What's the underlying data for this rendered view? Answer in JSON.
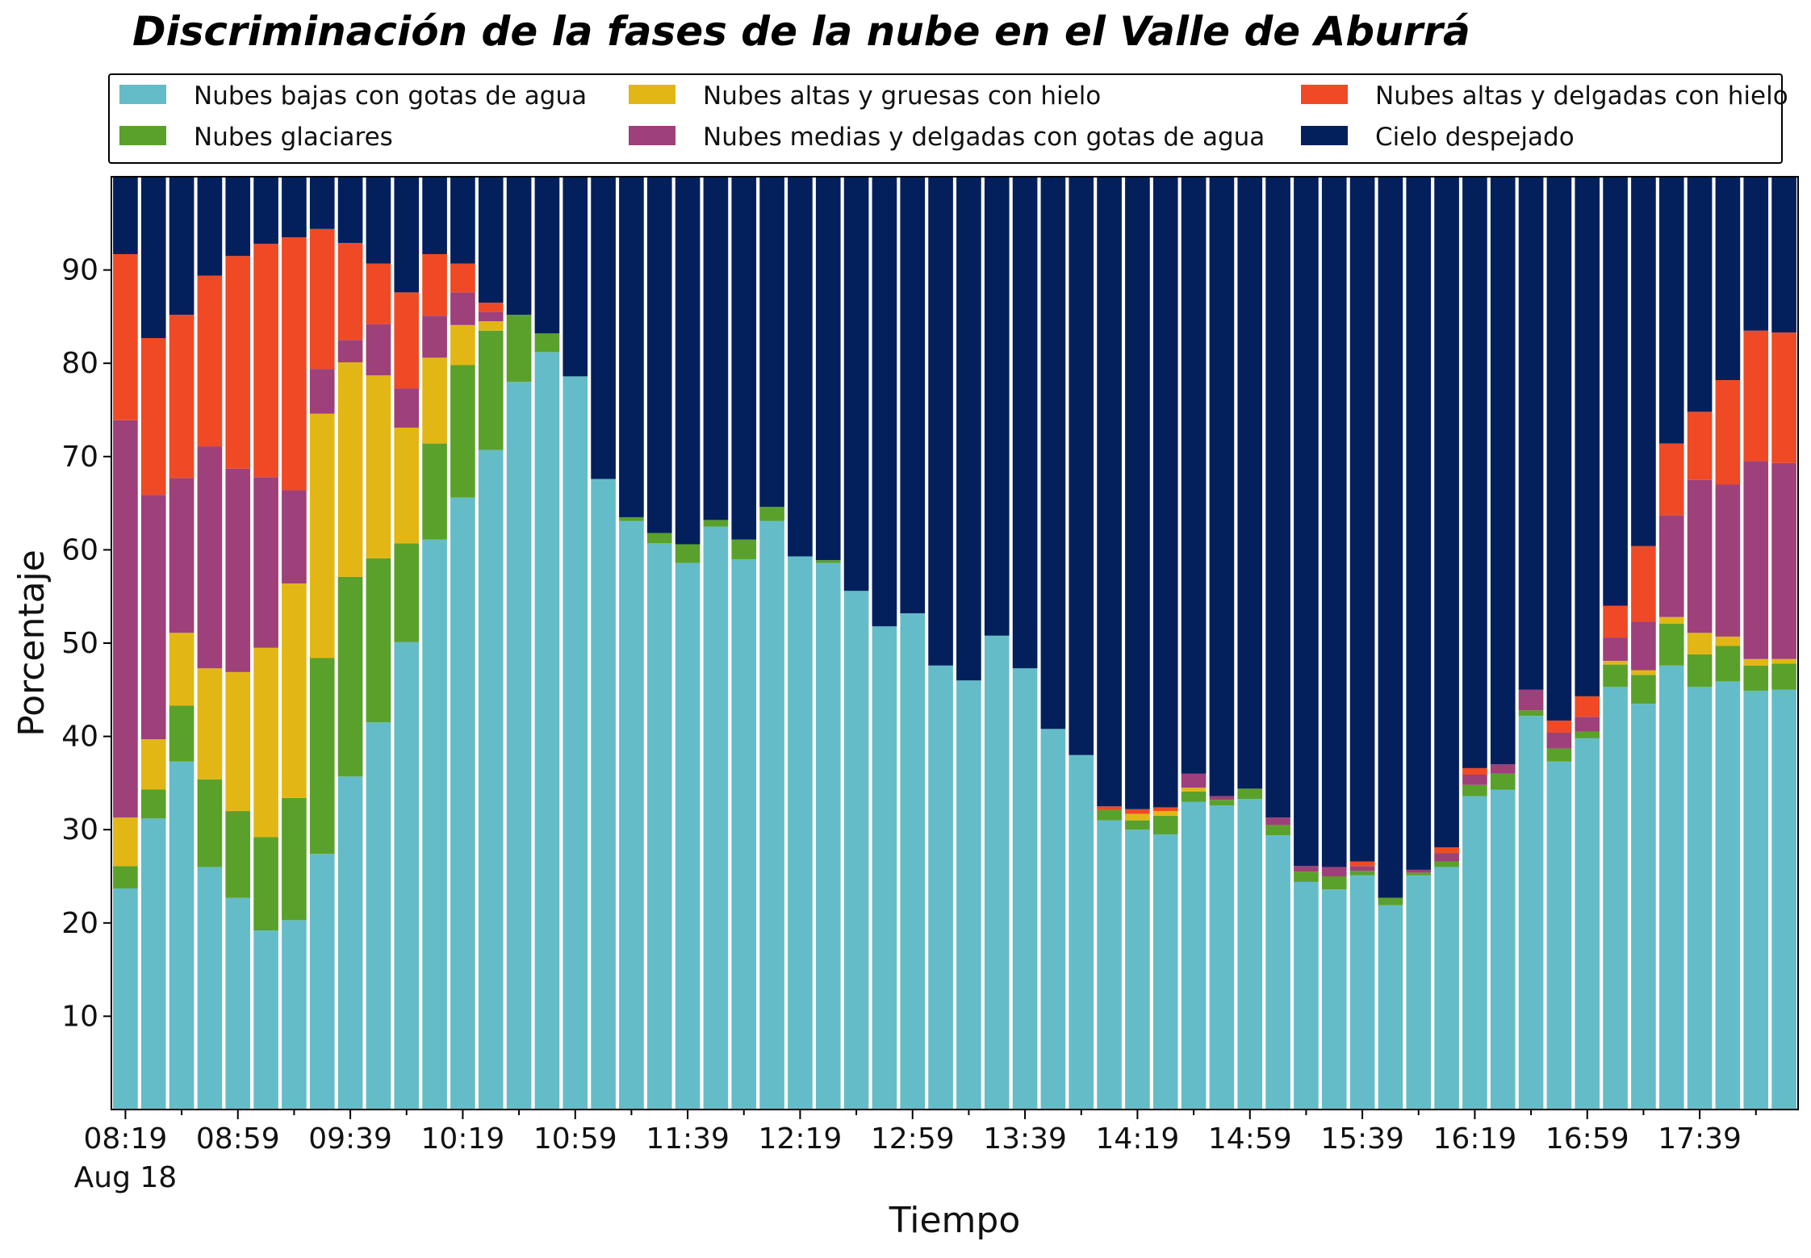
{
  "chart_data": {
    "type": "bar",
    "stacked": true,
    "title": "Discriminación de la fases de la nube en el Valle de Aburrá",
    "xlabel": "Tiempo",
    "ylabel": "Porcentaje",
    "ylim": [
      0,
      100
    ],
    "yticks": [
      10,
      20,
      30,
      40,
      50,
      60,
      70,
      80,
      90
    ],
    "x_tick_labels": [
      "08:19",
      "08:59",
      "09:39",
      "10:19",
      "10:59",
      "11:39",
      "12:19",
      "12:59",
      "13:39",
      "14:19",
      "14:59",
      "15:39",
      "16:19",
      "16:59",
      "17:39"
    ],
    "x_date_label": "Aug 18",
    "legend_position": "top",
    "interval_minutes": 10,
    "bar_count": 60,
    "series": [
      {
        "name": "Nubes bajas con gotas de agua",
        "color": "#65bcc9",
        "values": [
          23.7,
          31.2,
          37.3,
          26.0,
          22.7,
          19.2,
          20.3,
          27.4,
          35.7,
          41.5,
          50.1,
          61.1,
          65.6,
          70.7,
          78.0,
          81.2,
          78.6,
          67.6,
          63.1,
          60.7,
          58.6,
          62.5,
          59.0,
          63.1,
          59.3,
          58.6,
          55.6,
          51.8,
          53.2,
          47.6,
          46.0,
          50.8,
          47.3,
          40.8,
          38.0,
          31.0,
          30.0,
          29.5,
          33.0,
          32.6,
          33.3,
          29.4,
          24.4,
          23.6,
          25.1,
          21.9,
          25.1,
          26.0,
          33.6,
          34.3,
          42.2,
          37.3,
          39.8,
          45.3,
          43.5,
          47.6,
          45.3,
          45.9,
          44.9,
          45.0
        ]
      },
      {
        "name": "Nubes glaciares",
        "color": "#5aa12b",
        "values": [
          2.4,
          3.1,
          6.0,
          9.4,
          9.3,
          10.0,
          13.1,
          21.0,
          21.4,
          17.6,
          10.6,
          10.3,
          14.2,
          12.8,
          7.2,
          2.0,
          0.0,
          0.0,
          0.4,
          1.1,
          2.0,
          0.7,
          2.1,
          1.5,
          0.0,
          0.3,
          0.0,
          0.0,
          0.0,
          0.0,
          0.0,
          0.0,
          0.0,
          0.0,
          0.0,
          1.1,
          1.0,
          2.0,
          1.1,
          0.6,
          1.1,
          1.1,
          1.1,
          1.4,
          0.5,
          0.8,
          0.3,
          0.6,
          1.2,
          1.7,
          0.6,
          1.4,
          0.7,
          2.4,
          3.1,
          4.5,
          3.5,
          3.8,
          2.7,
          2.8
        ]
      },
      {
        "name": "Nubes altas y gruesas con hielo",
        "color": "#e2b715",
        "values": [
          5.2,
          5.4,
          7.8,
          11.9,
          14.9,
          20.3,
          23.0,
          26.2,
          23.0,
          19.6,
          12.4,
          9.2,
          4.3,
          1.0,
          0.0,
          0.0,
          0.0,
          0.0,
          0.0,
          0.0,
          0.0,
          0.0,
          0.0,
          0.0,
          0.0,
          0.0,
          0.0,
          0.0,
          0.0,
          0.0,
          0.0,
          0.0,
          0.0,
          0.0,
          0.0,
          0.0,
          0.7,
          0.5,
          0.4,
          0.0,
          0.0,
          0.0,
          0.0,
          0.0,
          0.0,
          0.0,
          0.0,
          0.0,
          0.0,
          0.0,
          0.0,
          0.0,
          0.0,
          0.4,
          0.5,
          0.7,
          2.3,
          1.0,
          0.7,
          0.5
        ]
      },
      {
        "name": "Nubes medias y delgadas con gotas de agua",
        "color": "#9e4079",
        "values": [
          42.6,
          26.2,
          16.6,
          23.8,
          21.8,
          18.3,
          10.0,
          4.8,
          2.4,
          5.5,
          4.2,
          4.5,
          3.5,
          1.0,
          0.0,
          0.0,
          0.0,
          0.0,
          0.0,
          0.0,
          0.0,
          0.0,
          0.0,
          0.0,
          0.0,
          0.0,
          0.0,
          0.0,
          0.0,
          0.0,
          0.0,
          0.0,
          0.0,
          0.0,
          0.0,
          0.0,
          0.0,
          0.0,
          1.5,
          0.4,
          0.0,
          0.8,
          0.6,
          1.0,
          0.5,
          0.0,
          0.3,
          0.9,
          1.1,
          1.0,
          2.2,
          1.7,
          1.6,
          2.5,
          5.2,
          10.9,
          16.4,
          16.3,
          21.2,
          21.0
        ]
      },
      {
        "name": "Nubes altas y delgadas con hielo",
        "color": "#ef4a25",
        "values": [
          17.8,
          16.8,
          17.5,
          18.3,
          22.8,
          25.0,
          27.1,
          15.0,
          10.4,
          6.5,
          10.3,
          6.6,
          3.1,
          1.0,
          0.0,
          0.0,
          0.0,
          0.0,
          0.0,
          0.0,
          0.0,
          0.0,
          0.0,
          0.0,
          0.0,
          0.0,
          0.0,
          0.0,
          0.0,
          0.0,
          0.0,
          0.0,
          0.0,
          0.0,
          0.0,
          0.4,
          0.5,
          0.4,
          0.0,
          0.0,
          0.0,
          0.0,
          0.0,
          0.0,
          0.5,
          0.0,
          0.0,
          0.6,
          0.7,
          0.0,
          0.0,
          1.3,
          2.2,
          3.4,
          8.1,
          7.7,
          7.3,
          11.2,
          14.0,
          14.0
        ]
      },
      {
        "name": "Cielo despejado",
        "color": "#03205c",
        "values": [
          8.3,
          17.3,
          14.8,
          10.6,
          8.5,
          7.2,
          6.5,
          5.6,
          7.1,
          9.3,
          12.4,
          8.3,
          9.3,
          13.5,
          14.8,
          16.8,
          21.4,
          32.4,
          36.5,
          38.2,
          39.4,
          36.8,
          38.9,
          35.4,
          40.7,
          41.1,
          44.4,
          48.2,
          46.8,
          52.4,
          54.0,
          49.2,
          52.7,
          59.2,
          62.0,
          67.5,
          67.8,
          67.6,
          64.0,
          66.4,
          65.6,
          68.7,
          73.9,
          74.0,
          73.4,
          77.3,
          74.3,
          71.9,
          63.4,
          63.0,
          55.0,
          58.3,
          55.7,
          46.0,
          39.6,
          28.6,
          25.2,
          21.8,
          16.5,
          16.7
        ]
      }
    ]
  }
}
